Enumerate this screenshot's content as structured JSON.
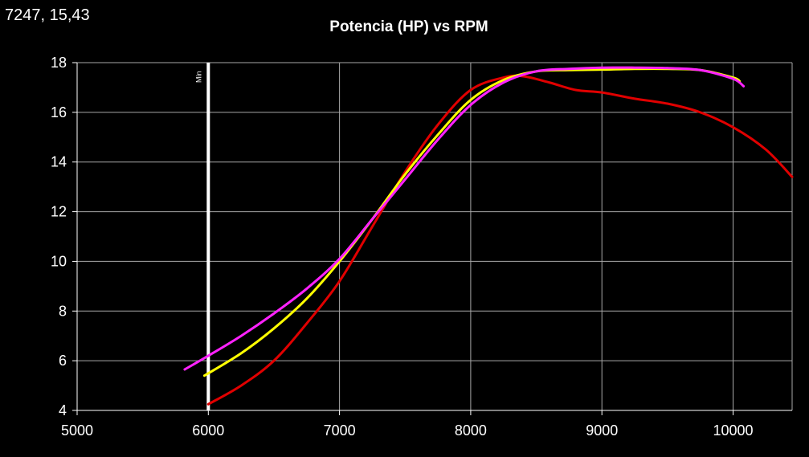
{
  "readout": "7247, 15,43",
  "chart_data": {
    "type": "line",
    "title": "Potencia (HP) vs RPM",
    "xlabel": "",
    "ylabel": "",
    "xlim": [
      5000,
      10450
    ],
    "ylim": [
      4,
      18
    ],
    "xticks": [
      5000,
      6000,
      7000,
      8000,
      9000,
      10000
    ],
    "yticks": [
      4,
      6,
      8,
      10,
      12,
      14,
      16,
      18
    ],
    "grid": true,
    "legend": "none",
    "marker": {
      "x": 6000,
      "label": "Min",
      "color": "#ffffff"
    },
    "series": [
      {
        "color": "#e00000",
        "x": [
          6000,
          6250,
          6500,
          6750,
          7000,
          7250,
          7500,
          7750,
          8000,
          8250,
          8400,
          8600,
          8800,
          9000,
          9250,
          9500,
          9750,
          10000,
          10250,
          10450
        ],
        "y": [
          4.25,
          5.0,
          6.0,
          7.5,
          9.2,
          11.4,
          13.6,
          15.5,
          16.9,
          17.4,
          17.45,
          17.2,
          16.9,
          16.8,
          16.55,
          16.35,
          16.0,
          15.4,
          14.5,
          13.4
        ]
      },
      {
        "color": "#ffff00",
        "x": [
          5970,
          6250,
          6500,
          6750,
          7000,
          7250,
          7500,
          7750,
          8000,
          8250,
          8500,
          8750,
          9000,
          9250,
          9500,
          9750,
          10000,
          10050
        ],
        "y": [
          5.4,
          6.3,
          7.3,
          8.5,
          10.0,
          11.7,
          13.5,
          15.1,
          16.5,
          17.3,
          17.65,
          17.7,
          17.72,
          17.75,
          17.75,
          17.7,
          17.4,
          17.25
        ]
      },
      {
        "color": "#ff22ff",
        "x": [
          5820,
          6000,
          6250,
          6500,
          6750,
          7000,
          7250,
          7500,
          7750,
          8000,
          8250,
          8500,
          8750,
          9000,
          9250,
          9500,
          9750,
          10000,
          10080
        ],
        "y": [
          5.65,
          6.2,
          7.0,
          7.9,
          8.9,
          10.1,
          11.7,
          13.3,
          14.9,
          16.3,
          17.2,
          17.65,
          17.75,
          17.8,
          17.8,
          17.78,
          17.7,
          17.35,
          17.05
        ]
      }
    ]
  }
}
